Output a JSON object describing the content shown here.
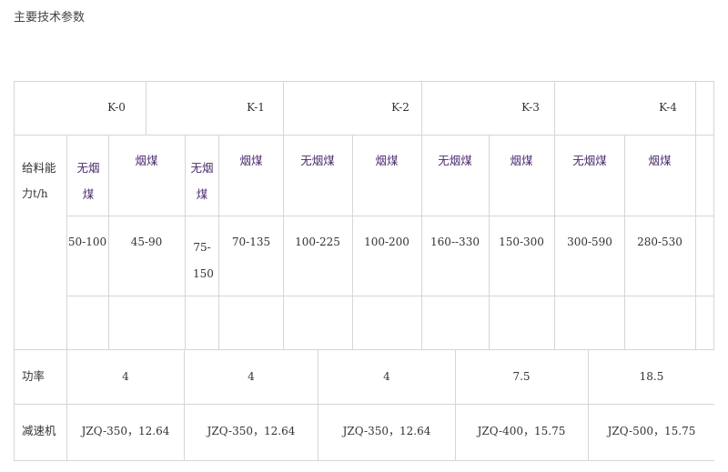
{
  "heading": "主要技术参数",
  "models": [
    "K-0",
    "K-1",
    "K-2",
    "K-3",
    "K-4"
  ],
  "capacity": {
    "label_line1": "给料能",
    "label_line2": "力t/h",
    "anthracite_line1": "无烟",
    "anthracite_line2": "煤",
    "anthracite": "无烟煤",
    "bituminous": "烟煤",
    "values": {
      "k0_anthracite": "50-100",
      "k0_bituminous": "45-90",
      "k1_anthracite_line1": "75-",
      "k1_anthracite_line2": "150",
      "k1_bituminous": "70-135",
      "k2_anthracite": "100-225",
      "k2_bituminous": "100-200",
      "k3_anthracite": "160--330",
      "k3_bituminous": "150-300",
      "k4_anthracite": "300-590",
      "k4_bituminous": "280-530"
    }
  },
  "power": {
    "label": "功率",
    "values": [
      "4",
      "4",
      "4",
      "7.5",
      "18.5"
    ]
  },
  "reducer": {
    "label": "减速机",
    "values": [
      "JZQ-350，12.64",
      "JZQ-350，12.64",
      "JZQ-350，12.64",
      "JZQ-400，15.75",
      "JZQ-500，15.75"
    ]
  }
}
